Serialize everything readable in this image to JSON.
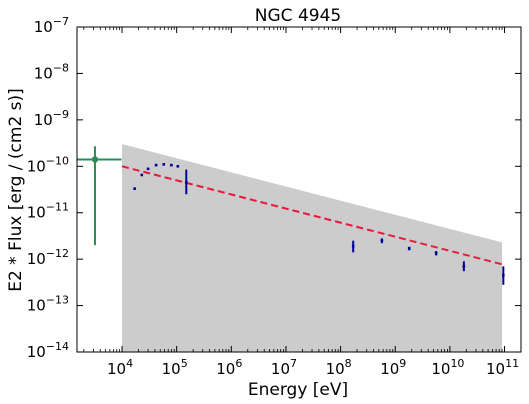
{
  "chart_data": {
    "type": "scatter",
    "title": "NGC 4945",
    "xlabel": "Energy [eV]",
    "ylabel": "E2 * Flux [erg / (cm2 s)]",
    "xscale": "log",
    "yscale": "log",
    "xlim": [
      1500,
      200000000000
    ],
    "ylim": [
      1e-14,
      1e-07
    ],
    "grid": false,
    "legend": "none",
    "x_ticks": [
      {
        "exp": 4,
        "base": "10",
        "sup": "4"
      },
      {
        "exp": 5,
        "base": "10",
        "sup": "5"
      },
      {
        "exp": 6,
        "base": "10",
        "sup": "6"
      },
      {
        "exp": 7,
        "base": "10",
        "sup": "7"
      },
      {
        "exp": 8,
        "base": "10",
        "sup": "8"
      },
      {
        "exp": 9,
        "base": "10",
        "sup": "9"
      },
      {
        "exp": 10,
        "base": "10",
        "sup": "10"
      },
      {
        "exp": 11,
        "base": "10",
        "sup": "11"
      }
    ],
    "y_ticks": [
      {
        "exp": -7,
        "base": "10",
        "sup": "−7"
      },
      {
        "exp": -8,
        "base": "10",
        "sup": "−8"
      },
      {
        "exp": -9,
        "base": "10",
        "sup": "−9"
      },
      {
        "exp": -10,
        "base": "10",
        "sup": "−10"
      },
      {
        "exp": -11,
        "base": "10",
        "sup": "−11"
      },
      {
        "exp": -12,
        "base": "10",
        "sup": "−12"
      },
      {
        "exp": -13,
        "base": "10",
        "sup": "−13"
      },
      {
        "exp": -14,
        "base": "10",
        "sup": "−14"
      }
    ],
    "uncertainty_band": {
      "color": "#cccccc",
      "x": [
        10000,
        90000000000
      ],
      "upper": [
        3e-10,
        2.3e-12
      ],
      "lower": [
        1e-14,
        1e-14
      ]
    },
    "model_line": {
      "color": "#e8193c",
      "style": "dashed",
      "x": [
        10000,
        100000000000
      ],
      "y": [
        1e-10,
        7.5e-13
      ]
    },
    "xray_points": {
      "color": "#000099",
      "points": [
        {
          "x": 17000,
          "y": 3.3e-11,
          "ylo": 3.1e-11,
          "yhi": 3.5e-11
        },
        {
          "x": 23000,
          "y": 6.5e-11,
          "ylo": 6.2e-11,
          "yhi": 6.8e-11
        },
        {
          "x": 30000,
          "y": 8.8e-11,
          "ylo": 8.4e-11,
          "yhi": 9.2e-11
        },
        {
          "x": 42000,
          "y": 1.06e-10,
          "ylo": 1.01e-10,
          "yhi": 1.11e-10
        },
        {
          "x": 58000,
          "y": 1.1e-10,
          "ylo": 1.05e-10,
          "yhi": 1.15e-10
        },
        {
          "x": 80000,
          "y": 1.06e-10,
          "ylo": 1.01e-10,
          "yhi": 1.11e-10
        },
        {
          "x": 105000,
          "y": 1e-10,
          "ylo": 9.5e-11,
          "yhi": 1.05e-10
        },
        {
          "x": 150000,
          "y": 4.5e-11,
          "ylo": 2.5e-11,
          "yhi": 8.5e-11
        }
      ]
    },
    "gamma_points": {
      "color": "#000099",
      "points": [
        {
          "x": 170000000,
          "y": 1.9e-12,
          "ylo": 1.4e-12,
          "yhi": 2.5e-12
        },
        {
          "x": 570000000,
          "y": 2.5e-12,
          "ylo": 2.2e-12,
          "yhi": 2.8e-12
        },
        {
          "x": 1800000000,
          "y": 1.7e-12,
          "ylo": 1.55e-12,
          "yhi": 1.85e-12
        },
        {
          "x": 5600000000,
          "y": 1.35e-12,
          "ylo": 1.2e-12,
          "yhi": 1.5e-12
        },
        {
          "x": 18000000000,
          "y": 7e-13,
          "ylo": 5.5e-13,
          "yhi": 9e-13
        },
        {
          "x": 95000000000,
          "y": 4.5e-13,
          "ylo": 2.8e-13,
          "yhi": 7e-13
        }
      ]
    },
    "green_point": {
      "color": "#2e8b57",
      "x": 3200,
      "xlo": 1500,
      "xhi": 9800,
      "y": 1.4e-10,
      "ylo": 2e-12,
      "yhi": 2.7e-10
    }
  }
}
